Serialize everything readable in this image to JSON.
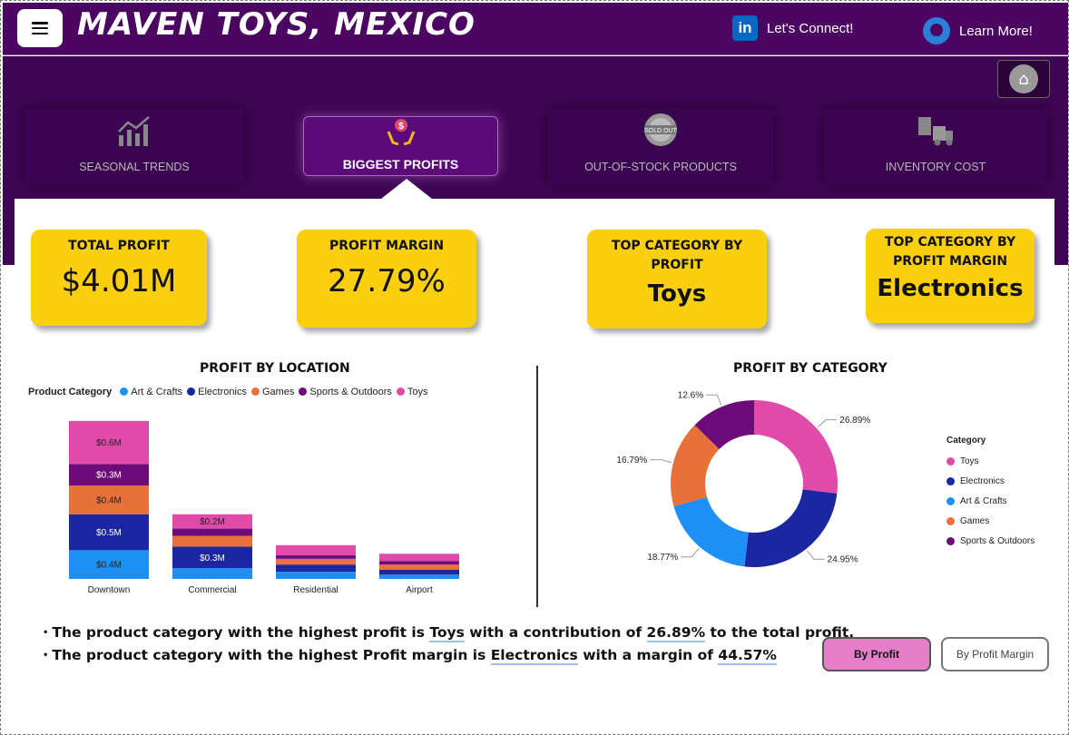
{
  "header": {
    "title": "MAVEN TOYS, MEXICO",
    "connect_label": "Let's Connect!",
    "connect_icon": "linkedin-icon",
    "learn_label": "Learn More!",
    "learn_icon": "github-icon"
  },
  "nav": {
    "tabs": [
      {
        "label": "SEASONAL TRENDS",
        "icon": "trend-chart-icon"
      },
      {
        "label": "BIGGEST PROFITS",
        "icon": "money-hands-icon",
        "active": true
      },
      {
        "label": "OUT-OF-STOCK PRODUCTS",
        "icon": "sold-out-icon"
      },
      {
        "label": "INVENTORY COST",
        "icon": "delivery-truck-icon"
      }
    ],
    "home_icon": "home-icon"
  },
  "kpis": [
    {
      "label": "TOTAL PROFIT",
      "value": "$4.01M"
    },
    {
      "label": "PROFIT MARGIN",
      "value": "27.79%"
    },
    {
      "label_line1": "TOP CATEGORY BY",
      "label_line2": "PROFIT",
      "value": "Toys"
    },
    {
      "label_line1": "TOP CATEGORY BY",
      "label_line2": "PROFIT MARGIN",
      "value": "Electronics"
    }
  ],
  "colors": {
    "art_crafts": "#1e90f5",
    "electronics": "#1a27a0",
    "games": "#e8713a",
    "sports": "#6e0b7a",
    "toys": "#e04aa8",
    "kpi": "#f9cf0f",
    "header": "#4a0660"
  },
  "chart_data": [
    {
      "type": "bar",
      "stacked": true,
      "title": "PROFIT BY LOCATION",
      "legend_title": "Product Category",
      "legend_position": "top-left",
      "categories": [
        "Downtown",
        "Commercial",
        "Residential",
        "Airport"
      ],
      "series": [
        {
          "name": "Art & Crafts",
          "values": [
            0.4,
            0.15,
            0.1,
            0.06
          ],
          "labels": [
            "$0.4M",
            "",
            "",
            ""
          ]
        },
        {
          "name": "Electronics",
          "values": [
            0.5,
            0.3,
            0.1,
            0.07
          ],
          "labels": [
            "$0.5M",
            "$0.3M",
            "",
            ""
          ]
        },
        {
          "name": "Games",
          "values": [
            0.4,
            0.15,
            0.08,
            0.07
          ],
          "labels": [
            "$0.4M",
            "",
            "",
            ""
          ]
        },
        {
          "name": "Sports & Outdoors",
          "values": [
            0.3,
            0.1,
            0.05,
            0.05
          ],
          "labels": [
            "$0.3M",
            "",
            "",
            ""
          ]
        },
        {
          "name": "Toys",
          "values": [
            0.6,
            0.2,
            0.14,
            0.1
          ],
          "labels": [
            "$0.6M",
            "$0.2M",
            "",
            ""
          ]
        }
      ],
      "ylim": [
        0,
        2.4
      ],
      "grid": false
    },
    {
      "type": "pie",
      "donut": true,
      "title": "PROFIT BY CATEGORY",
      "legend_title": "Category",
      "legend_position": "right",
      "slices": [
        {
          "name": "Toys",
          "value": 26.89,
          "label": "26.89%"
        },
        {
          "name": "Electronics",
          "value": 24.95,
          "label": "24.95%"
        },
        {
          "name": "Art & Crafts",
          "value": 18.77,
          "label": "18.77%"
        },
        {
          "name": "Games",
          "value": 16.79,
          "label": "16.79%"
        },
        {
          "name": "Sports & Outdoors",
          "value": 12.6,
          "label": "12.6%"
        }
      ]
    }
  ],
  "insights": {
    "line1": {
      "pre": "The product category with the highest profit is ",
      "cat": "Toys",
      "mid": " with a contribution of ",
      "val": "26.89%",
      "post": " to the total profit."
    },
    "line2": {
      "pre": "The product category with the highest Profit margin is ",
      "cat": "Electronics",
      "mid": " with a margin of ",
      "val": "44.57%"
    }
  },
  "toggles": {
    "by_profit": "By Profit",
    "by_margin": "By Profit Margin"
  }
}
